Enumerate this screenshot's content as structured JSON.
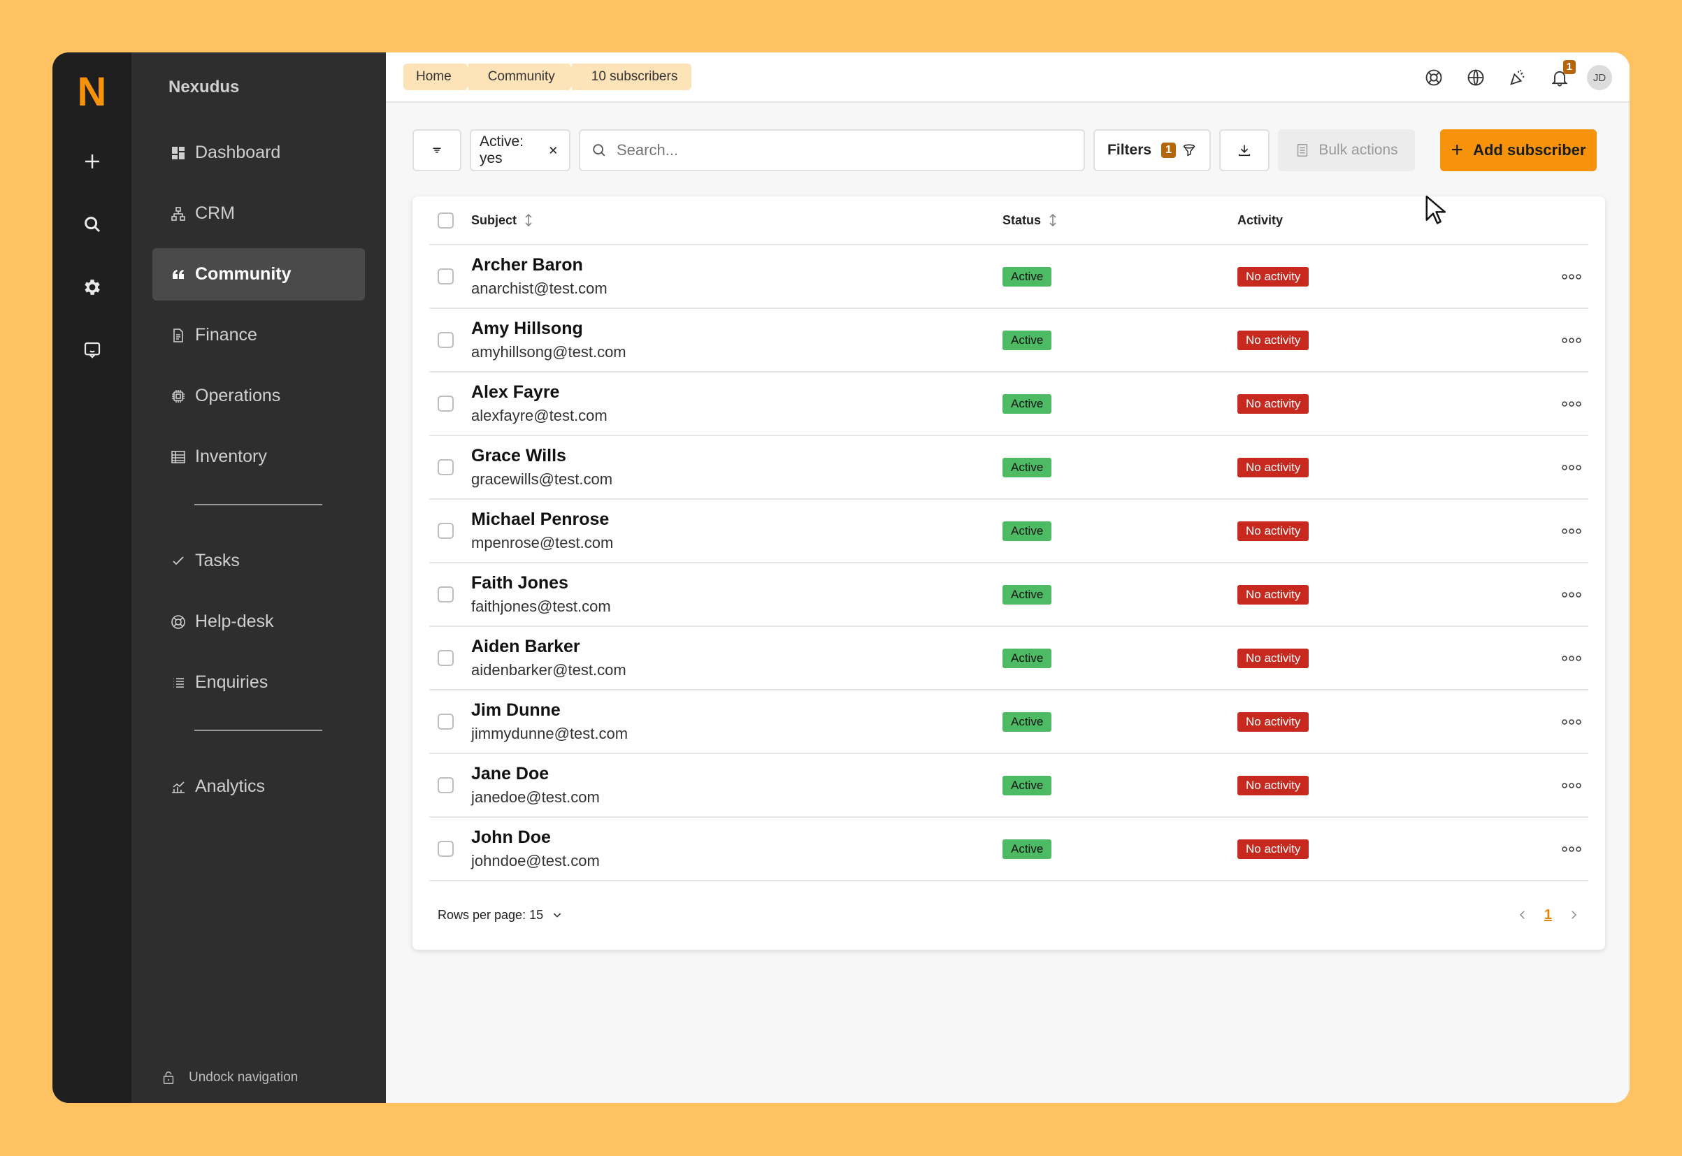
{
  "brand": {
    "logo": "N",
    "name": "Nexudus"
  },
  "rail": {
    "items": [
      "plus-icon",
      "search-icon",
      "gear-icon",
      "chat-icon"
    ]
  },
  "sidebar": {
    "items": [
      {
        "label": "Dashboard",
        "icon": "dashboard-icon",
        "active": false
      },
      {
        "label": "CRM",
        "icon": "crm-icon",
        "active": false
      },
      {
        "label": "Community",
        "icon": "quote-icon",
        "active": true
      },
      {
        "label": "Finance",
        "icon": "document-icon",
        "active": false
      },
      {
        "label": "Operations",
        "icon": "chip-icon",
        "active": false
      },
      {
        "label": "Inventory",
        "icon": "table-icon",
        "active": false
      },
      {
        "label": "Tasks",
        "icon": "check-icon",
        "active": false
      },
      {
        "label": "Help-desk",
        "icon": "lifebuoy-icon",
        "active": false
      },
      {
        "label": "Enquiries",
        "icon": "list-icon",
        "active": false
      },
      {
        "label": "Analytics",
        "icon": "chart-icon",
        "active": false
      }
    ],
    "undock_label": "Undock navigation"
  },
  "breadcrumb": [
    "Home",
    "Community",
    "10 subscribers"
  ],
  "header": {
    "notification_count": "1",
    "avatar_initials": "JD"
  },
  "toolbar": {
    "active_chip": "Active: yes",
    "search_placeholder": "Search...",
    "filters_label": "Filters",
    "filters_count": "1",
    "bulk_label": "Bulk actions",
    "add_label": "Add subscriber"
  },
  "table": {
    "columns": {
      "subject": "Subject",
      "status": "Status",
      "activity": "Activity"
    },
    "rows": [
      {
        "name": "Archer Baron",
        "email": "anarchist@test.com",
        "status": "Active",
        "activity": "No activity"
      },
      {
        "name": "Amy Hillsong",
        "email": "amyhillsong@test.com",
        "status": "Active",
        "activity": "No activity"
      },
      {
        "name": "Alex Fayre",
        "email": "alexfayre@test.com",
        "status": "Active",
        "activity": "No activity"
      },
      {
        "name": "Grace Wills",
        "email": "gracewills@test.com",
        "status": "Active",
        "activity": "No activity"
      },
      {
        "name": "Michael Penrose",
        "email": "mpenrose@test.com",
        "status": "Active",
        "activity": "No activity"
      },
      {
        "name": "Faith Jones",
        "email": "faithjones@test.com",
        "status": "Active",
        "activity": "No activity"
      },
      {
        "name": "Aiden Barker",
        "email": "aidenbarker@test.com",
        "status": "Active",
        "activity": "No activity"
      },
      {
        "name": "Jim Dunne",
        "email": "jimmydunne@test.com",
        "status": "Active",
        "activity": "No activity"
      },
      {
        "name": "Jane Doe",
        "email": "janedoe@test.com",
        "status": "Active",
        "activity": "No activity"
      },
      {
        "name": "John Doe",
        "email": "johndoe@test.com",
        "status": "Active",
        "activity": "No activity"
      }
    ],
    "rows_per_page_label": "Rows per page: 15",
    "current_page": "1"
  },
  "colors": {
    "accent": "#F7930A",
    "active": "#4CBB64",
    "no_activity": "#C8291F",
    "background": "#FEC262"
  }
}
